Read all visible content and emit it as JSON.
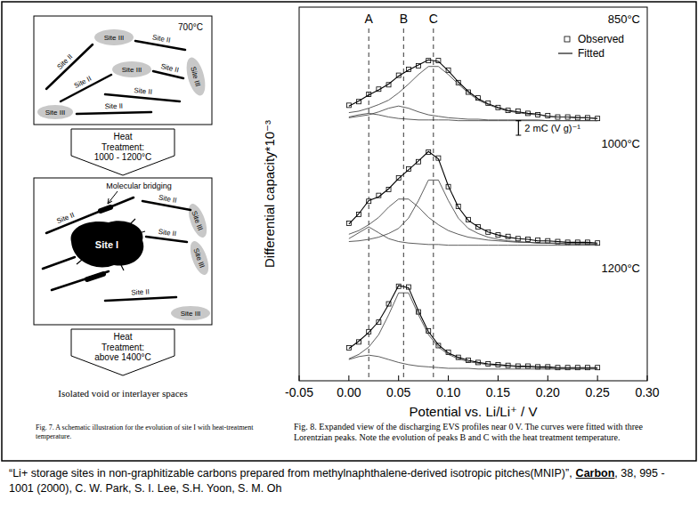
{
  "schematic": {
    "stages": [
      {
        "temperature": "700°C",
        "site_ii": [
          "Site II",
          "Site II",
          "Site II",
          "Site II",
          "Site II",
          "Site II"
        ],
        "site_iii": [
          "Site III",
          "Site III",
          "Site III",
          "Site III"
        ]
      },
      {
        "annotation": "Molecular bridging",
        "site_i": "Site I",
        "site_ii": [
          "Site II",
          "Site II",
          "Site II",
          "Site II"
        ],
        "site_iii": [
          "Site III",
          "Site III",
          "Site III"
        ]
      }
    ],
    "transitions": [
      [
        "Heat",
        "Treatment:",
        "1000 - 1200°C"
      ],
      [
        "Heat",
        "Treatment:",
        "above 1400°C"
      ]
    ],
    "final_state": "Isolated void or interlayer spaces",
    "caption": "Fig. 7. A schematic illustration for the evolution of site I with heat-treatment temperature."
  },
  "chart_data": [
    {
      "type": "line",
      "title": "850°C",
      "legend": "upper right",
      "annotations": [
        {
          "label": "A",
          "x": 0.02
        },
        {
          "label": "B",
          "x": 0.055
        },
        {
          "label": "C",
          "x": 0.085
        }
      ],
      "scale_bar": {
        "label": "2 mC (V g)⁻¹",
        "value": 2
      },
      "xlim": [
        -0.05,
        0.3
      ],
      "ylim": [
        0,
        17
      ],
      "tick_labels": "x",
      "x": [
        0.0,
        0.01,
        0.02,
        0.03,
        0.04,
        0.05,
        0.06,
        0.07,
        0.08,
        0.09,
        0.1,
        0.11,
        0.12,
        0.13,
        0.14,
        0.15,
        0.16,
        0.17,
        0.18,
        0.19,
        0.2,
        0.21,
        0.22,
        0.23,
        0.24,
        0.25
      ],
      "series": [
        {
          "name": "Observed",
          "marker": "square",
          "line_style": "none",
          "values": [
            3.6,
            4.1,
            5.1,
            5.8,
            6.4,
            7.7,
            8.5,
            9.0,
            9.7,
            9.7,
            8.4,
            6.7,
            5.4,
            4.6,
            3.9,
            3.3,
            2.9,
            2.8,
            2.5,
            2.3,
            2.2,
            2.0,
            2.0,
            1.9,
            1.9,
            1.8
          ]
        },
        {
          "name": "Fitted",
          "line_style": "solid",
          "values": [
            3.5,
            4.2,
            5.0,
            5.7,
            6.5,
            7.6,
            8.4,
            9.1,
            9.8,
            9.6,
            8.3,
            6.8,
            5.5,
            4.5,
            3.8,
            3.3,
            2.9,
            2.7,
            2.5,
            2.4,
            2.1,
            2.0,
            2.0,
            1.9,
            1.9,
            1.8
          ]
        },
        {
          "line_style": "solid",
          "values": [
            2.0,
            2.3,
            2.5,
            2.3,
            2.0,
            1.8,
            1.7,
            1.6,
            1.6,
            1.6,
            1.6,
            1.5,
            1.5,
            1.5,
            1.5,
            1.5,
            1.5,
            1.5,
            1.5,
            1.5,
            1.5,
            1.5,
            1.5,
            1.5,
            1.5,
            1.5
          ]
        },
        {
          "line_style": "solid",
          "values": [
            1.9,
            2.1,
            2.3,
            2.7,
            3.2,
            3.5,
            3.2,
            2.7,
            2.3,
            2.1,
            1.9,
            1.8,
            1.7,
            1.7,
            1.6,
            1.6,
            1.6,
            1.6,
            1.6,
            1.6,
            1.5,
            1.5,
            1.5,
            1.5,
            1.5,
            1.5
          ]
        },
        {
          "line_style": "solid",
          "values": [
            2.6,
            2.8,
            3.2,
            3.7,
            4.3,
            5.3,
            6.5,
            7.8,
            8.9,
            8.9,
            7.8,
            6.5,
            5.3,
            4.3,
            3.7,
            3.2,
            2.8,
            2.6,
            2.4,
            2.3,
            2.1,
            2.0,
            2.0,
            1.9,
            1.9,
            1.8
          ]
        }
      ]
    },
    {
      "type": "line",
      "title": "1000°C",
      "ylabel": "Differential capacity*10⁻³",
      "xlim": [
        -0.05,
        0.3
      ],
      "ylim": [
        0,
        17
      ],
      "tick_labels": "x",
      "x": [
        0.0,
        0.01,
        0.02,
        0.03,
        0.04,
        0.05,
        0.06,
        0.07,
        0.08,
        0.09,
        0.1,
        0.11,
        0.12,
        0.13,
        0.14,
        0.15,
        0.16,
        0.17,
        0.18,
        0.19,
        0.2,
        0.21,
        0.22,
        0.23,
        0.24,
        0.25
      ],
      "series": [
        {
          "name": "Observed",
          "marker": "square",
          "line_style": "none",
          "values": [
            4.5,
            5.7,
            7.5,
            8.3,
            9.1,
            10.7,
            11.9,
            12.9,
            14.2,
            13.4,
            9.5,
            6.8,
            5.0,
            4.0,
            3.3,
            2.9,
            2.7,
            2.4,
            2.3,
            2.2,
            2.1,
            2.0,
            1.9,
            1.9,
            1.9,
            1.8
          ]
        },
        {
          "name": "Fitted",
          "line_style": "solid",
          "values": [
            4.4,
            5.8,
            7.6,
            8.1,
            9.2,
            10.6,
            11.8,
            13.0,
            14.3,
            13.3,
            9.6,
            6.7,
            4.9,
            4.0,
            3.3,
            2.9,
            2.6,
            2.4,
            2.3,
            2.1,
            2.1,
            2.0,
            1.9,
            1.9,
            1.9,
            1.8
          ]
        },
        {
          "line_style": "solid",
          "values": [
            2.4,
            3.2,
            4.0,
            3.2,
            2.4,
            2.0,
            1.8,
            1.7,
            1.6,
            1.6,
            1.5,
            1.5,
            1.5,
            1.5,
            1.5,
            1.5,
            1.5,
            1.5,
            1.5,
            1.5,
            1.5,
            1.5,
            1.5,
            1.5,
            1.5,
            1.5
          ]
        },
        {
          "line_style": "solid",
          "values": [
            3.0,
            3.5,
            4.3,
            5.3,
            6.7,
            7.8,
            7.8,
            6.7,
            5.3,
            4.3,
            3.5,
            3.0,
            2.6,
            2.4,
            2.2,
            2.1,
            2.0,
            1.9,
            1.9,
            1.8,
            1.8,
            1.8,
            1.7,
            1.7,
            1.7,
            1.7
          ]
        },
        {
          "line_style": "solid",
          "values": [
            2.0,
            2.1,
            2.3,
            2.6,
            3.1,
            3.8,
            5.2,
            7.6,
            10.4,
            10.4,
            7.6,
            5.2,
            3.8,
            3.1,
            2.6,
            2.3,
            2.1,
            2.0,
            1.9,
            1.8,
            1.8,
            1.7,
            1.7,
            1.7,
            1.7,
            1.6
          ]
        }
      ]
    },
    {
      "type": "line",
      "title": "1200°C",
      "xlabel": "Potential vs. Li/Li⁺ / V",
      "xlim": [
        -0.05,
        0.3
      ],
      "ylim": [
        0,
        17
      ],
      "tick_labels": "x",
      "xticks": [
        {
          "value": -0.05,
          "label": "-0.05"
        },
        {
          "value": 0,
          "label": "0.00"
        },
        {
          "value": 0.05,
          "label": "0.05"
        },
        {
          "value": 0.1,
          "label": "0.10"
        },
        {
          "value": 0.15,
          "label": "0.15"
        },
        {
          "value": 0.2,
          "label": "0.20"
        },
        {
          "value": 0.25,
          "label": "0.25"
        },
        {
          "value": 0.3,
          "label": "0.30"
        }
      ],
      "x": [
        0.0,
        0.01,
        0.02,
        0.03,
        0.04,
        0.05,
        0.06,
        0.07,
        0.08,
        0.09,
        0.1,
        0.11,
        0.12,
        0.13,
        0.14,
        0.15,
        0.16,
        0.17,
        0.18,
        0.19,
        0.2,
        0.21,
        0.22,
        0.23,
        0.24,
        0.25
      ],
      "series": [
        {
          "name": "Observed",
          "marker": "square",
          "line_style": "none",
          "values": [
            4.5,
            5.3,
            6.7,
            8.0,
            10.5,
            12.9,
            12.8,
            9.4,
            6.8,
            4.8,
            3.9,
            3.2,
            2.8,
            2.5,
            2.3,
            2.2,
            2.1,
            2.0,
            2.0,
            1.9,
            1.9,
            1.8,
            1.8,
            1.8,
            1.8,
            1.8
          ]
        },
        {
          "name": "Fitted",
          "line_style": "solid",
          "values": [
            4.4,
            5.4,
            6.6,
            8.1,
            10.4,
            13.0,
            12.7,
            9.5,
            6.7,
            4.9,
            3.8,
            3.2,
            2.8,
            2.5,
            2.3,
            2.2,
            2.1,
            2.0,
            2.0,
            1.9,
            1.9,
            1.8,
            1.8,
            1.8,
            1.8,
            1.8
          ]
        },
        {
          "line_style": "solid",
          "values": [
            2.9,
            3.3,
            3.5,
            3.3,
            2.9,
            2.5,
            2.2,
            2.0,
            1.9,
            1.8,
            1.7,
            1.7,
            1.7,
            1.6,
            1.6,
            1.6,
            1.6,
            1.6,
            1.6,
            1.6,
            1.6,
            1.6,
            1.6,
            1.6,
            1.6,
            1.6
          ]
        },
        {
          "line_style": "solid",
          "values": [
            3.0,
            3.6,
            4.6,
            6.3,
            9.0,
            12.0,
            12.0,
            9.0,
            6.3,
            4.6,
            3.6,
            3.0,
            2.6,
            2.4,
            2.2,
            2.1,
            2.0,
            1.9,
            1.9,
            1.8,
            1.8,
            1.7,
            1.7,
            1.7,
            1.7,
            1.7
          ]
        }
      ]
    }
  ],
  "chart_caption": "Fig. 8. Expanded view of the discharging EVS profiles near 0 V. The curves were fitted with three Lorentzian peaks. Note the evolution of peaks B and C with the heat treatment temperature.",
  "citation": {
    "title": "“Li+ storage sites in non-graphitizable carbons prepared from methylnaphthalene-derived isotropic pitches(MNIP)”,",
    "journal": "Carbon",
    "details": ", 38, 995 - 1001 (2000), C. W. Park, S. I. Lee, S.H. Yoon, S. M. Oh"
  }
}
